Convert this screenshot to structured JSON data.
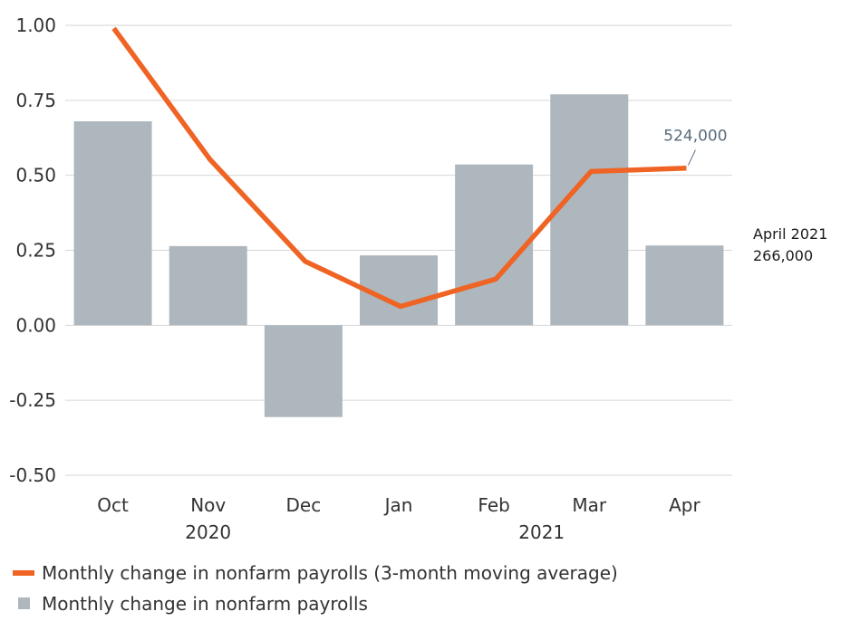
{
  "chart_data": {
    "type": "bar",
    "categories": [
      "Oct",
      "Nov",
      "Dec",
      "Jan",
      "Feb",
      "Mar",
      "Apr"
    ],
    "year_labels": [
      {
        "label": "2020",
        "category": "Nov"
      },
      {
        "label": "2021",
        "category": "Mar",
        "offset": -0.5
      }
    ],
    "ylim": [
      -0.5,
      1.0
    ],
    "yticks": [
      1.0,
      0.75,
      0.5,
      0.25,
      0.0,
      -0.25,
      -0.5
    ],
    "ytick_labels": [
      "1.00",
      "0.75",
      "0.50",
      "0.25",
      "0.00",
      "-0.25",
      "-0.50"
    ],
    "grid": true,
    "legend_position": "bottom-left",
    "series": [
      {
        "name": "Monthly change in nonfarm payrolls",
        "type": "bar",
        "color": "#adb7bd",
        "values": [
          0.68,
          0.264,
          -0.306,
          0.233,
          0.536,
          0.77,
          0.266
        ]
      },
      {
        "name": "Monthly change in nonfarm payrolls (3-month moving average)",
        "type": "line",
        "color": "#ef6424",
        "values": [
          0.99,
          0.553,
          0.213,
          0.063,
          0.154,
          0.513,
          0.524
        ]
      }
    ],
    "annotations": [
      {
        "text": "524,000",
        "series": 1,
        "category": "Apr"
      }
    ],
    "side_note": {
      "line1": "April 2021",
      "line2": "266,000"
    }
  }
}
